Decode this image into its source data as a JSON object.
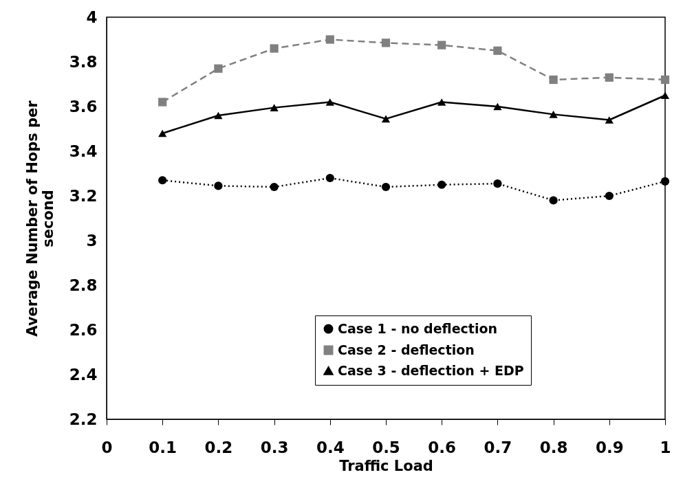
{
  "chart_data": {
    "type": "line",
    "xlabel": "Traffic Load",
    "ylabel": "Average Number of Hops per second",
    "x": [
      0.1,
      0.2,
      0.3,
      0.4,
      0.5,
      0.6,
      0.7,
      0.8,
      0.9,
      1
    ],
    "series": [
      {
        "name": "Case 1 - no deflection",
        "color": "#000000",
        "marker": "circle",
        "line_style": "dotted",
        "values": [
          3.27,
          3.245,
          3.24,
          3.28,
          3.24,
          3.25,
          3.255,
          3.18,
          3.2,
          3.265
        ]
      },
      {
        "name": "Case 2 - deflection",
        "color": "#808080",
        "marker": "square",
        "line_style": "dashed",
        "values": [
          3.62,
          3.77,
          3.86,
          3.9,
          3.885,
          3.875,
          3.85,
          3.72,
          3.73,
          3.72
        ]
      },
      {
        "name": "Case 3 - deflection + EDP",
        "color": "#000000",
        "marker": "triangle",
        "line_style": "solid",
        "values": [
          3.48,
          3.56,
          3.595,
          3.62,
          3.545,
          3.62,
          3.6,
          3.565,
          3.54,
          3.65
        ]
      }
    ],
    "xlim": [
      0,
      1
    ],
    "xticks": [
      0,
      0.1,
      0.2,
      0.3,
      0.4,
      0.5,
      0.6,
      0.7,
      0.8,
      0.9,
      1
    ],
    "ylim": [
      2.2,
      4
    ],
    "yticks": [
      2.2,
      2.4,
      2.6,
      2.8,
      3,
      3.2,
      3.4,
      3.6,
      3.8,
      4
    ],
    "grid": false,
    "legend": "bottom right"
  }
}
